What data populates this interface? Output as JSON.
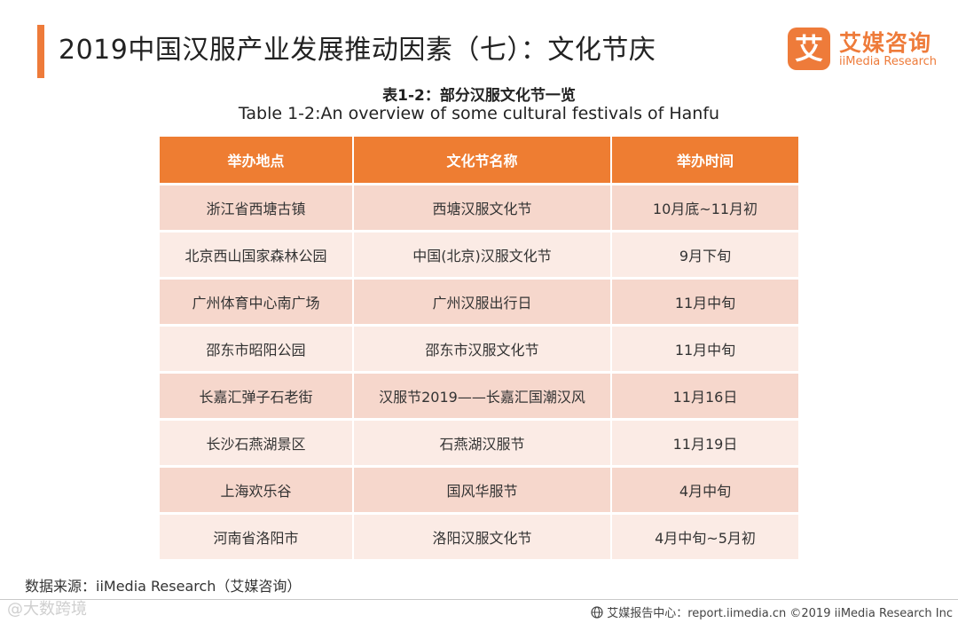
{
  "header": {
    "title": "2019中国汉服产业发展推动因素（七）：文化节庆",
    "logo": {
      "mark": "艾",
      "cn": "艾媒咨询",
      "en": "iiMedia Research"
    }
  },
  "caption": {
    "cn": "表1-2：部分汉服文化节一览",
    "en": "Table 1-2:An overview of some cultural festivals of Hanfu"
  },
  "table": {
    "columns": [
      "举办地点",
      "文化节名称",
      "举办时间"
    ],
    "rows": [
      [
        "浙江省西塘古镇",
        "西塘汉服文化节",
        "10月底~11月初"
      ],
      [
        "北京西山国家森林公园",
        "中国(北京)汉服文化节",
        "9月下旬"
      ],
      [
        "广州体育中心南广场",
        "广州汉服出行日",
        "11月中旬"
      ],
      [
        "邵东市昭阳公园",
        "邵东市汉服文化节",
        "11月中旬"
      ],
      [
        "长嘉汇弹子石老街",
        "汉服节2019——长嘉汇国潮汉风",
        "11月16日"
      ],
      [
        "长沙石燕湖景区",
        "石燕湖汉服节",
        "11月19日"
      ],
      [
        "上海欢乐谷",
        "国风华服节",
        "4月中旬"
      ],
      [
        "河南省洛阳市",
        "洛阳汉服文化节",
        "4月中旬~5月初"
      ]
    ]
  },
  "footer": {
    "source": "数据来源：iiMedia Research（艾媒咨询）",
    "watermark": "@大数跨境",
    "right_text": "艾媒报告中心：report.iimedia.cn ©2019 iiMedia Research Inc",
    "icon": "globe-icon"
  },
  "colors": {
    "accent": "#ee7b3a",
    "header_bg": "#ee7d32",
    "row_odd": "#f6d7cc",
    "row_even": "#fbebe5"
  }
}
